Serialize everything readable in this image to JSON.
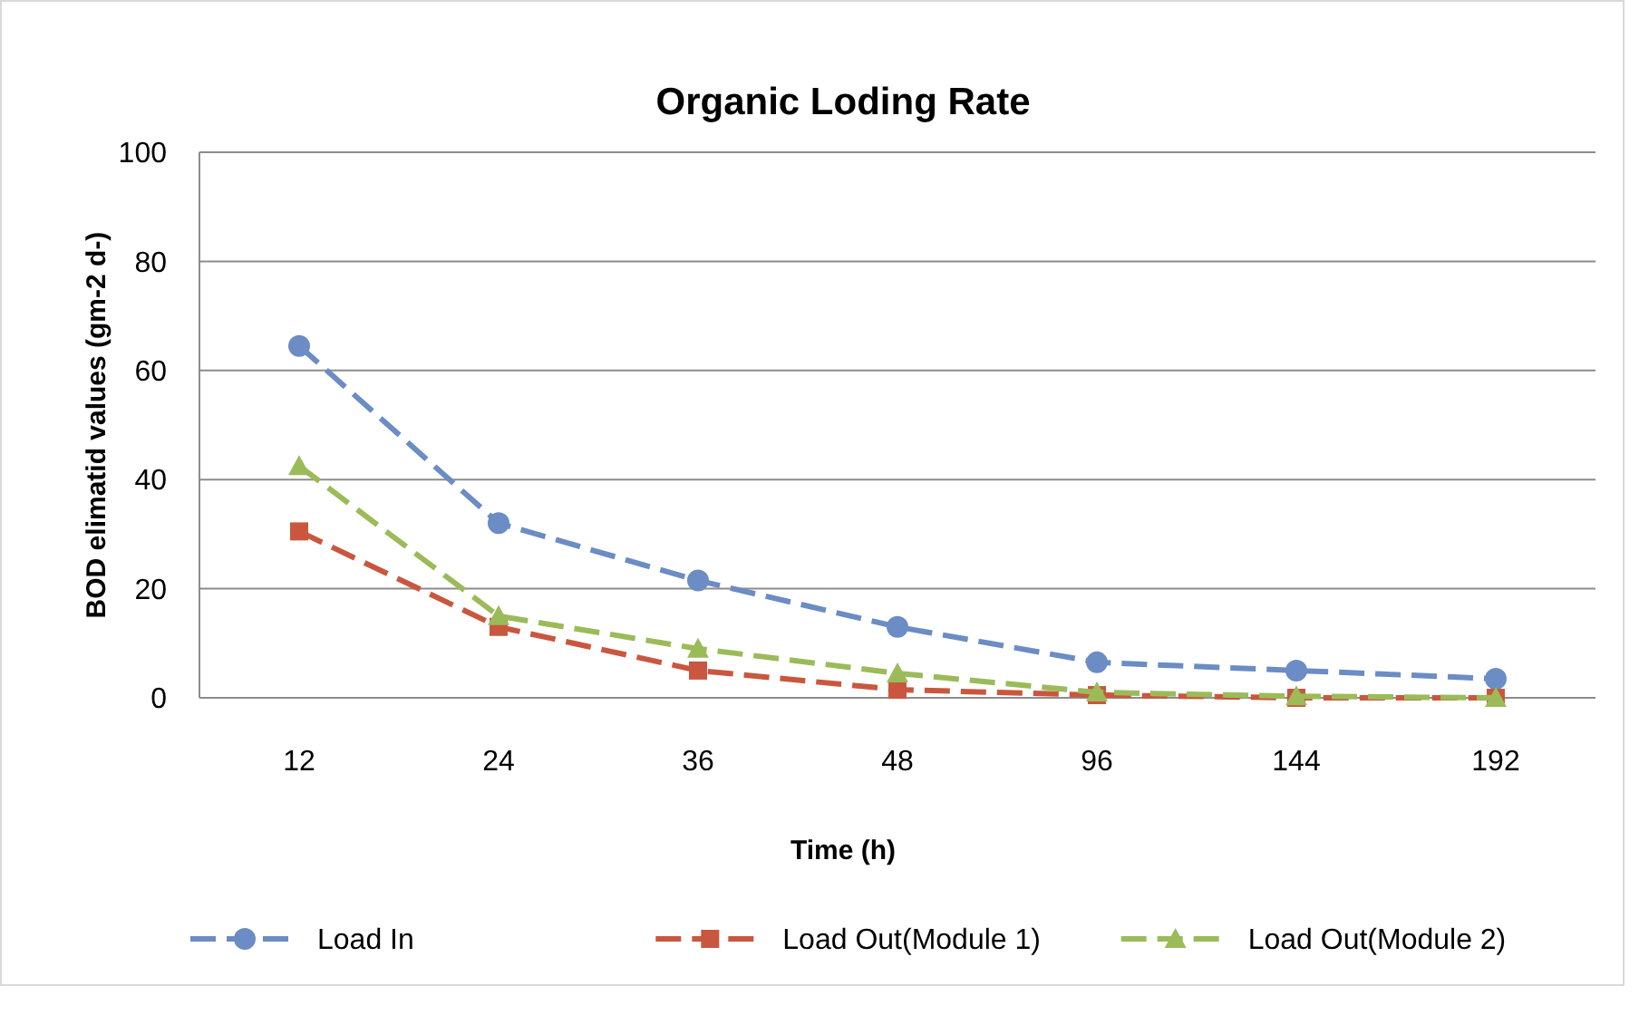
{
  "chart_data": {
    "type": "line",
    "title": "Organic  Loding Rate",
    "xlabel": "Time (h)",
    "ylabel": "BOD elimatid values  (gm-2 d-)",
    "categories": [
      "12",
      "24",
      "36",
      "48",
      "96",
      "144",
      "192"
    ],
    "series": [
      {
        "name": "Load In",
        "color": "#6b8cc4",
        "marker": "circle",
        "values": [
          64.5,
          32,
          21.5,
          13,
          6.5,
          5,
          3.5
        ]
      },
      {
        "name": "Load Out(Module 1)",
        "color": "#c9573f",
        "marker": "square",
        "values": [
          30.5,
          13,
          5,
          1.5,
          0.5,
          0,
          0
        ]
      },
      {
        "name": "Load Out(Module 2)",
        "color": "#9bbb59",
        "marker": "triangle",
        "values": [
          42.5,
          15,
          9,
          4.5,
          1,
          0.3,
          0
        ]
      }
    ],
    "ylim": [
      0,
      100
    ],
    "yticks": [
      0,
      20,
      40,
      60,
      80,
      100
    ],
    "grid": "y",
    "legend": "bottom",
    "line_style": "dashed"
  }
}
